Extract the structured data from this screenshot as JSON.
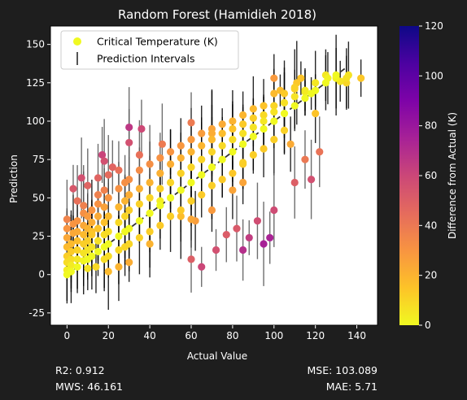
{
  "chart_data": {
    "type": "scatter",
    "title": "Random Forest (Hamidieh 2018)",
    "xlabel": "Actual Value",
    "ylabel": "Prediction",
    "xlim": [
      -8,
      150
    ],
    "ylim": [
      -33,
      162
    ],
    "xticks": [
      0,
      20,
      40,
      60,
      80,
      100,
      120,
      140
    ],
    "yticks": [
      -25,
      0,
      25,
      50,
      75,
      100,
      125,
      150
    ],
    "grid": false,
    "legend": {
      "placement": "top-left",
      "entries": [
        "Critical Temperature (K)",
        "Prediction Intervals"
      ]
    },
    "colorbar": {
      "label": "Difference from Actual (K)",
      "range": [
        0,
        120
      ],
      "ticks": [
        0,
        20,
        40,
        60,
        80,
        100,
        120
      ],
      "colormap": "plasma_r"
    },
    "reference_line": {
      "x": [
        0,
        135
      ],
      "y": [
        0,
        135
      ],
      "style": "dashed",
      "color": "#333333"
    },
    "series": [
      {
        "name": "Critical Temperature (K)",
        "points": [
          [
            0,
            0,
            0
          ],
          [
            0,
            3,
            3
          ],
          [
            0,
            8,
            8
          ],
          [
            0,
            12,
            12
          ],
          [
            0,
            18,
            18
          ],
          [
            0,
            24,
            24
          ],
          [
            0,
            30,
            30
          ],
          [
            0,
            36,
            36
          ],
          [
            2,
            2,
            0
          ],
          [
            2,
            6,
            4
          ],
          [
            2,
            10,
            8
          ],
          [
            2,
            15,
            13
          ],
          [
            2,
            20,
            18
          ],
          [
            3,
            27,
            24
          ],
          [
            3,
            33,
            30
          ],
          [
            5,
            5,
            0
          ],
          [
            5,
            10,
            5
          ],
          [
            5,
            16,
            11
          ],
          [
            5,
            22,
            17
          ],
          [
            5,
            28,
            23
          ],
          [
            5,
            35,
            30
          ],
          [
            8,
            9,
            1
          ],
          [
            8,
            14,
            6
          ],
          [
            8,
            20,
            12
          ],
          [
            8,
            26,
            18
          ],
          [
            8,
            32,
            24
          ],
          [
            8,
            40,
            32
          ],
          [
            10,
            10,
            0
          ],
          [
            10,
            16,
            6
          ],
          [
            10,
            22,
            12
          ],
          [
            10,
            30,
            20
          ],
          [
            10,
            38,
            28
          ],
          [
            12,
            12,
            0
          ],
          [
            12,
            18,
            6
          ],
          [
            12,
            26,
            14
          ],
          [
            12,
            34,
            22
          ],
          [
            12,
            42,
            30
          ],
          [
            15,
            15,
            0
          ],
          [
            15,
            22,
            7
          ],
          [
            15,
            30,
            15
          ],
          [
            15,
            38,
            23
          ],
          [
            15,
            46,
            31
          ],
          [
            15,
            52,
            37
          ],
          [
            18,
            18,
            0
          ],
          [
            18,
            26,
            8
          ],
          [
            18,
            34,
            16
          ],
          [
            18,
            44,
            26
          ],
          [
            18,
            55,
            37
          ],
          [
            18,
            10,
            8
          ],
          [
            20,
            20,
            0
          ],
          [
            20,
            28,
            8
          ],
          [
            20,
            38,
            18
          ],
          [
            20,
            50,
            30
          ],
          [
            20,
            12,
            8
          ],
          [
            25,
            25,
            0
          ],
          [
            25,
            34,
            9
          ],
          [
            25,
            44,
            19
          ],
          [
            25,
            56,
            31
          ],
          [
            25,
            16,
            9
          ],
          [
            28,
            28,
            0
          ],
          [
            28,
            38,
            10
          ],
          [
            28,
            48,
            20
          ],
          [
            28,
            60,
            32
          ],
          [
            28,
            18,
            10
          ],
          [
            30,
            30,
            0
          ],
          [
            30,
            42,
            12
          ],
          [
            30,
            52,
            22
          ],
          [
            30,
            20,
            10
          ],
          [
            30,
            62,
            32
          ],
          [
            35,
            35,
            0
          ],
          [
            35,
            46,
            11
          ],
          [
            35,
            56,
            21
          ],
          [
            35,
            68,
            33
          ],
          [
            35,
            24,
            11
          ],
          [
            40,
            40,
            0
          ],
          [
            40,
            50,
            10
          ],
          [
            40,
            60,
            20
          ],
          [
            40,
            72,
            32
          ],
          [
            40,
            28,
            12
          ],
          [
            45,
            45,
            0
          ],
          [
            45,
            56,
            11
          ],
          [
            45,
            66,
            21
          ],
          [
            45,
            32,
            13
          ],
          [
            45,
            76,
            31
          ],
          [
            50,
            50,
            0
          ],
          [
            50,
            60,
            10
          ],
          [
            50,
            72,
            22
          ],
          [
            50,
            38,
            12
          ],
          [
            50,
            80,
            30
          ],
          [
            55,
            55,
            0
          ],
          [
            55,
            66,
            11
          ],
          [
            55,
            76,
            21
          ],
          [
            55,
            42,
            13
          ],
          [
            55,
            84,
            29
          ],
          [
            60,
            60,
            0
          ],
          [
            60,
            70,
            10
          ],
          [
            60,
            80,
            20
          ],
          [
            60,
            48,
            12
          ],
          [
            60,
            88,
            28
          ],
          [
            60,
            36,
            24
          ],
          [
            65,
            65,
            0
          ],
          [
            65,
            75,
            10
          ],
          [
            65,
            84,
            19
          ],
          [
            65,
            52,
            13
          ],
          [
            65,
            92,
            27
          ],
          [
            70,
            70,
            0
          ],
          [
            70,
            80,
            10
          ],
          [
            70,
            88,
            18
          ],
          [
            70,
            58,
            12
          ],
          [
            70,
            95,
            25
          ],
          [
            70,
            42,
            28
          ],
          [
            75,
            75,
            0
          ],
          [
            75,
            84,
            9
          ],
          [
            75,
            92,
            17
          ],
          [
            75,
            62,
            13
          ],
          [
            75,
            98,
            23
          ],
          [
            80,
            80,
            0
          ],
          [
            80,
            88,
            8
          ],
          [
            80,
            95,
            15
          ],
          [
            80,
            66,
            14
          ],
          [
            80,
            55,
            25
          ],
          [
            80,
            100,
            20
          ],
          [
            85,
            85,
            0
          ],
          [
            85,
            92,
            7
          ],
          [
            85,
            98,
            13
          ],
          [
            85,
            72,
            13
          ],
          [
            85,
            60,
            25
          ],
          [
            85,
            104,
            19
          ],
          [
            90,
            90,
            0
          ],
          [
            90,
            96,
            6
          ],
          [
            90,
            102,
            12
          ],
          [
            90,
            78,
            12
          ],
          [
            90,
            108,
            18
          ],
          [
            95,
            95,
            0
          ],
          [
            95,
            100,
            5
          ],
          [
            95,
            104,
            9
          ],
          [
            95,
            82,
            13
          ],
          [
            95,
            110,
            15
          ],
          [
            100,
            100,
            0
          ],
          [
            100,
            106,
            6
          ],
          [
            100,
            110,
            10
          ],
          [
            100,
            88,
            12
          ],
          [
            100,
            118,
            18
          ],
          [
            105,
            105,
            0
          ],
          [
            105,
            112,
            7
          ],
          [
            105,
            118,
            13
          ],
          [
            105,
            94,
            11
          ],
          [
            110,
            110,
            0
          ],
          [
            110,
            116,
            6
          ],
          [
            110,
            121,
            11
          ],
          [
            110,
            122,
            12
          ],
          [
            115,
            115,
            0
          ],
          [
            115,
            120,
            5
          ],
          [
            115,
            119,
            4
          ],
          [
            120,
            120,
            0
          ],
          [
            120,
            125,
            5
          ],
          [
            125,
            125,
            0
          ],
          [
            125,
            130,
            5
          ],
          [
            130,
            128,
            2
          ],
          [
            130,
            130,
            0
          ],
          [
            135,
            128,
            7
          ],
          [
            135,
            125,
            10
          ],
          [
            142,
            128,
            14
          ],
          [
            30,
            96,
            66
          ],
          [
            30,
            86,
            56
          ],
          [
            36,
            95,
            59
          ],
          [
            7,
            63,
            56
          ],
          [
            15,
            63,
            48
          ],
          [
            17,
            78,
            61
          ],
          [
            18,
            74,
            56
          ],
          [
            20,
            65,
            45
          ],
          [
            22,
            70,
            48
          ],
          [
            25,
            68,
            43
          ],
          [
            35,
            78,
            43
          ],
          [
            10,
            58,
            48
          ],
          [
            46,
            85,
            39
          ],
          [
            60,
            99,
            39
          ],
          [
            70,
            92,
            22
          ],
          [
            82,
            30,
            52
          ],
          [
            92,
            35,
            57
          ],
          [
            77,
            26,
            51
          ],
          [
            88,
            24,
            64
          ],
          [
            95,
            20,
            75
          ],
          [
            85,
            16,
            69
          ],
          [
            60,
            10,
            50
          ],
          [
            98,
            24,
            74
          ],
          [
            110,
            60,
            50
          ],
          [
            100,
            42,
            58
          ],
          [
            115,
            75,
            40
          ],
          [
            108,
            85,
            23
          ],
          [
            118,
            62,
            56
          ],
          [
            122,
            80,
            42
          ],
          [
            113,
            128,
            15
          ],
          [
            85,
            73,
            12
          ],
          [
            45,
            48,
            3
          ],
          [
            55,
            38,
            17
          ],
          [
            40,
            20,
            20
          ],
          [
            30,
            8,
            22
          ],
          [
            25,
            5,
            20
          ],
          [
            65,
            5,
            60
          ],
          [
            72,
            16,
            56
          ],
          [
            62,
            35,
            27
          ],
          [
            100,
            128,
            28
          ],
          [
            103,
            120,
            17
          ],
          [
            111,
            125,
            14
          ],
          [
            120,
            105,
            15
          ],
          [
            118,
            118,
            0
          ],
          [
            126,
            128,
            2
          ],
          [
            132,
            126,
            6
          ],
          [
            136,
            130,
            6
          ],
          [
            10,
            4,
            6
          ],
          [
            5,
            48,
            43
          ],
          [
            3,
            56,
            53
          ],
          [
            8,
            45,
            37
          ],
          [
            12,
            28,
            16
          ],
          [
            14,
            5,
            9
          ],
          [
            20,
            2,
            18
          ]
        ]
      }
    ],
    "stats": {
      "r2": "R2: 0.912",
      "mws": "MWS: 46.161",
      "mse": "MSE: 103.089",
      "mae": "MAE: 5.71"
    }
  }
}
